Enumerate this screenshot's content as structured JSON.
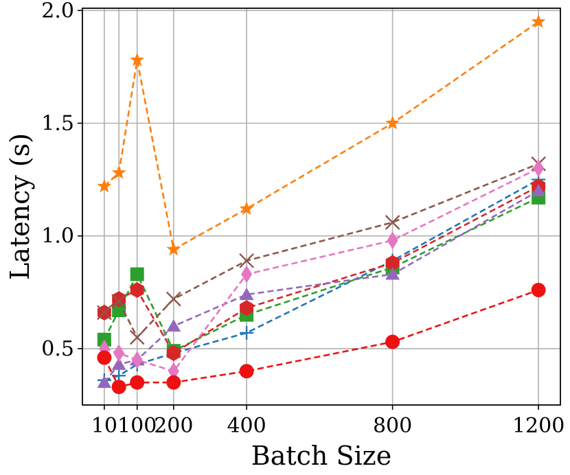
{
  "chart_data": {
    "type": "line",
    "title": "",
    "xlabel": "Batch Size",
    "ylabel": "Latency (s)",
    "x": [
      10,
      50,
      100,
      200,
      400,
      800,
      1200
    ],
    "xticks": [
      10,
      100,
      200,
      400,
      800,
      1200
    ],
    "xtick_labels": [
      "10",
      "100",
      "200",
      "400",
      "800",
      "1200"
    ],
    "yticks": [
      0.5,
      1.0,
      1.5,
      2.0
    ],
    "ytick_labels": [
      "0.5",
      "1.0",
      "1.5",
      "2.0"
    ],
    "xlim": [
      -50,
      1260
    ],
    "ylim": [
      0.25,
      2.01
    ],
    "grid": true,
    "legend": null,
    "series": [
      {
        "name": "blue-plus",
        "color": "#1f77b4",
        "marker": "plus",
        "values": [
          0.36,
          0.38,
          0.43,
          0.48,
          0.57,
          0.89,
          1.25
        ]
      },
      {
        "name": "orange-star",
        "color": "#ff7f0e",
        "marker": "star",
        "values": [
          1.22,
          1.28,
          1.78,
          0.94,
          1.12,
          1.5,
          1.95
        ]
      },
      {
        "name": "green-square",
        "color": "#2ca02c",
        "marker": "square",
        "values": [
          0.54,
          0.67,
          0.83,
          0.49,
          0.65,
          0.86,
          1.17
        ]
      },
      {
        "name": "red-hexagon",
        "color": "#d62728",
        "marker": "hexagon",
        "values": [
          0.66,
          0.72,
          0.76,
          0.48,
          0.68,
          0.88,
          1.22
        ]
      },
      {
        "name": "purple-triangle",
        "color": "#9467bd",
        "marker": "triangle",
        "values": [
          0.35,
          0.43,
          0.45,
          0.6,
          0.74,
          0.83,
          1.2
        ]
      },
      {
        "name": "brown-x",
        "color": "#8c564b",
        "marker": "x",
        "values": [
          0.66,
          0.71,
          0.55,
          0.72,
          0.89,
          1.06,
          1.32
        ]
      },
      {
        "name": "pink-diamond",
        "color": "#e377c2",
        "marker": "diamond",
        "values": [
          0.5,
          0.48,
          0.45,
          0.4,
          0.83,
          0.98,
          1.3
        ]
      },
      {
        "name": "red-circle",
        "color": "#ee1111",
        "marker": "circle",
        "values": [
          0.46,
          0.33,
          0.35,
          0.35,
          0.4,
          0.53,
          0.76
        ]
      }
    ]
  }
}
